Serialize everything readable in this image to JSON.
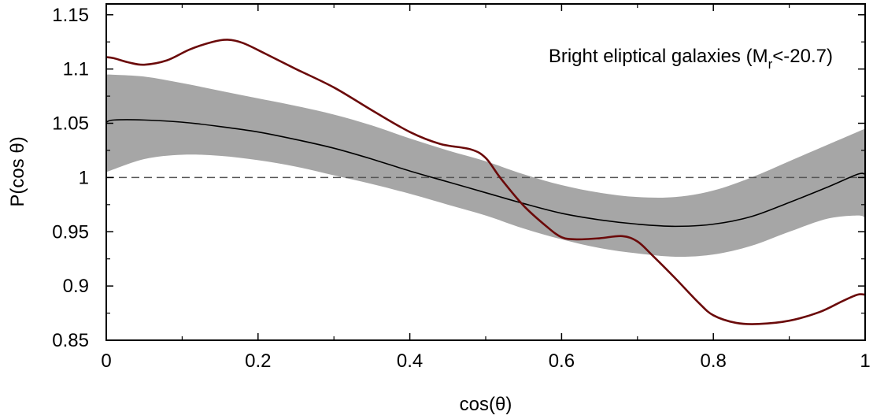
{
  "chart_data": {
    "type": "line",
    "xlabel": "cos(θ)",
    "ylabel": "P(cos θ)",
    "xlim": [
      0,
      1
    ],
    "ylim": [
      0.85,
      1.16
    ],
    "x_ticks": [
      "0",
      "0.2",
      "0.4",
      "0.6",
      "0.8",
      "1"
    ],
    "y_ticks": [
      "0.85",
      "0.9",
      "0.95",
      "1",
      "1.05",
      "1.1",
      "1.15"
    ],
    "annotation": {
      "main": "Bright eliptical galaxies (M",
      "sub": "r",
      "tail": "<-20.7)"
    },
    "reference_line": 1.0,
    "band": {
      "x": [
        0,
        0.05,
        0.1,
        0.15,
        0.2,
        0.25,
        0.3,
        0.35,
        0.4,
        0.45,
        0.5,
        0.55,
        0.6,
        0.65,
        0.7,
        0.75,
        0.8,
        0.85,
        0.9,
        0.95,
        0.99,
        1.0
      ],
      "lower": [
        1.005,
        1.017,
        1.021,
        1.02,
        1.016,
        1.01,
        1.002,
        0.994,
        0.985,
        0.975,
        0.965,
        0.953,
        0.943,
        0.935,
        0.93,
        0.927,
        0.929,
        0.937,
        0.95,
        0.962,
        0.965,
        0.963
      ],
      "upper": [
        1.095,
        1.093,
        1.087,
        1.08,
        1.073,
        1.066,
        1.058,
        1.048,
        1.036,
        1.025,
        1.015,
        1.003,
        0.993,
        0.986,
        0.982,
        0.982,
        0.988,
        1.0,
        1.015,
        1.03,
        1.042,
        1.045
      ]
    },
    "series": [
      {
        "x": [
          0,
          0.01,
          0.05,
          0.1,
          0.15,
          0.2,
          0.25,
          0.3,
          0.35,
          0.4,
          0.45,
          0.5,
          0.55,
          0.6,
          0.65,
          0.7,
          0.75,
          0.8,
          0.85,
          0.9,
          0.95,
          0.99,
          1.0
        ],
        "values": [
          1.051,
          1.053,
          1.053,
          1.051,
          1.047,
          1.042,
          1.035,
          1.027,
          1.017,
          1.006,
          0.996,
          0.986,
          0.976,
          0.967,
          0.961,
          0.957,
          0.955,
          0.957,
          0.964,
          0.977,
          0.991,
          1.003,
          1.003
        ],
        "color": "#000000"
      },
      {
        "x": [
          0,
          0.01,
          0.03,
          0.05,
          0.08,
          0.11,
          0.14,
          0.16,
          0.18,
          0.21,
          0.25,
          0.3,
          0.35,
          0.4,
          0.44,
          0.48,
          0.5,
          0.52,
          0.55,
          0.58,
          0.6,
          0.62,
          0.65,
          0.68,
          0.7,
          0.72,
          0.75,
          0.78,
          0.8,
          0.83,
          0.86,
          0.9,
          0.94,
          0.97,
          0.99,
          1.0
        ],
        "values": [
          1.111,
          1.11,
          1.106,
          1.104,
          1.108,
          1.118,
          1.125,
          1.127,
          1.124,
          1.114,
          1.1,
          1.083,
          1.062,
          1.042,
          1.031,
          1.026,
          1.018,
          0.999,
          0.974,
          0.955,
          0.945,
          0.943,
          0.944,
          0.946,
          0.941,
          0.928,
          0.907,
          0.885,
          0.873,
          0.866,
          0.865,
          0.868,
          0.876,
          0.886,
          0.892,
          0.892
        ],
        "color": "#6b0a0a"
      }
    ],
    "band_color": "#a6a6a6",
    "grid": false
  }
}
